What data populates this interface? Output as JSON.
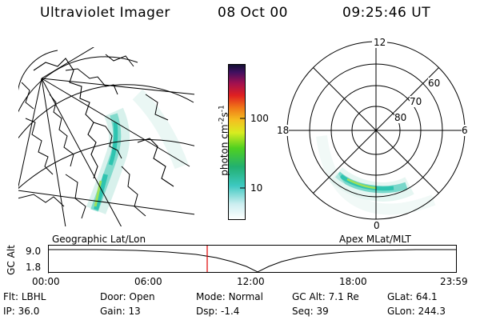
{
  "header": {
    "instrument": "Ultraviolet Imager",
    "date": "08 Oct 00",
    "time": "09:25:46 UT"
  },
  "colorbar": {
    "ylabel_prefix": "photon cm",
    "ylabel_exp1": "-2",
    "ylabel_mid": "s",
    "ylabel_exp2": "-1",
    "tick_high": "100",
    "tick_low": "10"
  },
  "polar": {
    "mlt_top": "12",
    "mlt_left": "18",
    "mlt_right": "6",
    "mlt_bottom": "0",
    "lat_60": "60",
    "lat_70": "70",
    "lat_80": "80"
  },
  "captions": {
    "left": "Geographic Lat/Lon",
    "right": "Apex MLat/MLT"
  },
  "altitude_plot": {
    "ylabel": "GC Alt",
    "y_high": "9.0",
    "y_low": "1.8",
    "x_ticks": [
      "00:00",
      "06:00",
      "12:00",
      "18:00",
      "23:59"
    ],
    "marker_color": "#e00000"
  },
  "info": {
    "filter_label": "Flt:",
    "filter": "LBHL",
    "door_label": "Door:",
    "door": "Open",
    "mode_label": "Mode:",
    "mode": "Normal",
    "gcalt_label": "GC Alt:",
    "gcalt": "7.1 Re",
    "glat_label": "GLat:",
    "glat": "64.1",
    "ip_label": "IP:",
    "ip": "36.0",
    "gain_label": "Gain:",
    "gain": "13",
    "dsp_label": "Dsp:",
    "dsp": "-1.4",
    "seq_label": "Seq:",
    "seq": "39",
    "glon_label": "GLon:",
    "glon": "244.3"
  }
}
